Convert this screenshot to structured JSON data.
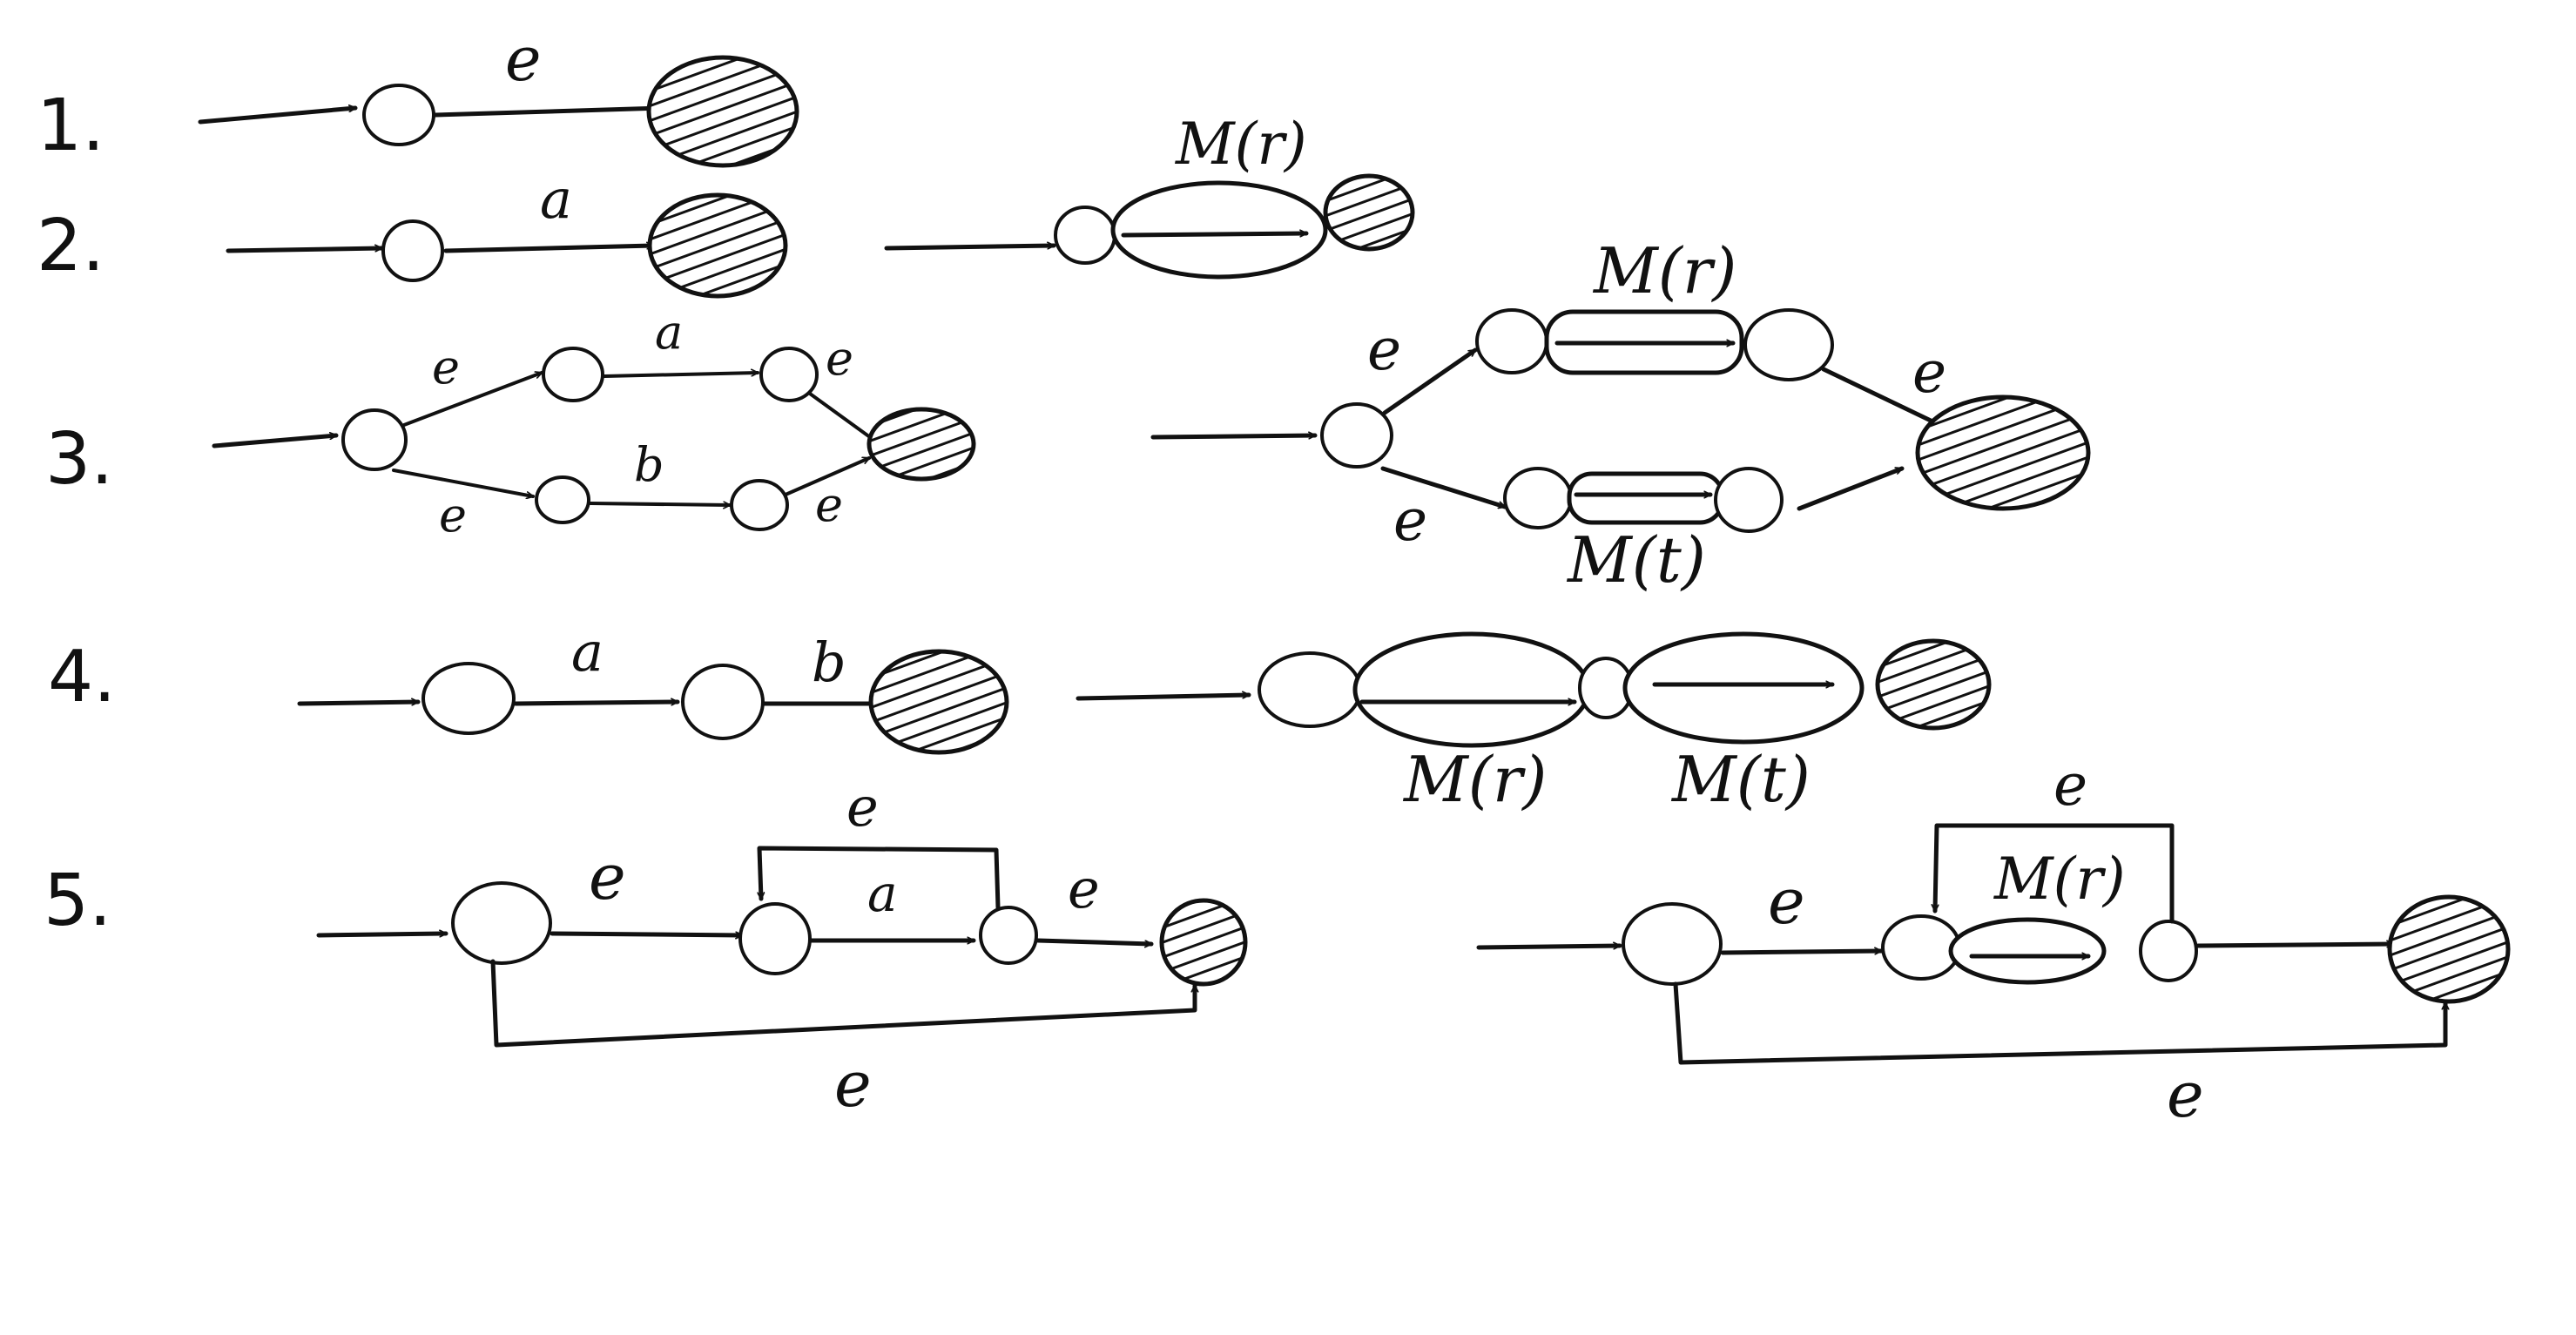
{
  "rows": [
    {
      "number": "1."
    },
    {
      "number": "2."
    },
    {
      "number": "3."
    },
    {
      "number": "4."
    },
    {
      "number": "5."
    }
  ],
  "labels": {
    "r1_e": "e",
    "r2_a": "a",
    "r2_m": "M(r)",
    "r3_left_e1": "e",
    "r3_left_a": "a",
    "r3_left_e2": "e",
    "r3_left_e3": "e",
    "r3_left_b": "b",
    "r3_left_e4": "e",
    "r3_right_e1": "e",
    "r3_right_mr": "M(r)",
    "r3_right_e2": "e",
    "r3_right_e3": "e",
    "r3_right_mt": "M(t)",
    "r4_a": "a",
    "r4_b": "b",
    "r4_mr": "M(r)",
    "r4_mt": "M(t)",
    "r5_left_e1": "e",
    "r5_left_eloop": "e",
    "r5_left_a": "a",
    "r5_left_e2": "e",
    "r5_left_ebottom": "e",
    "r5_right_e1": "e",
    "r5_right_eloop": "e",
    "r5_right_mr": "M(r)",
    "r5_right_ebottom": "e"
  }
}
